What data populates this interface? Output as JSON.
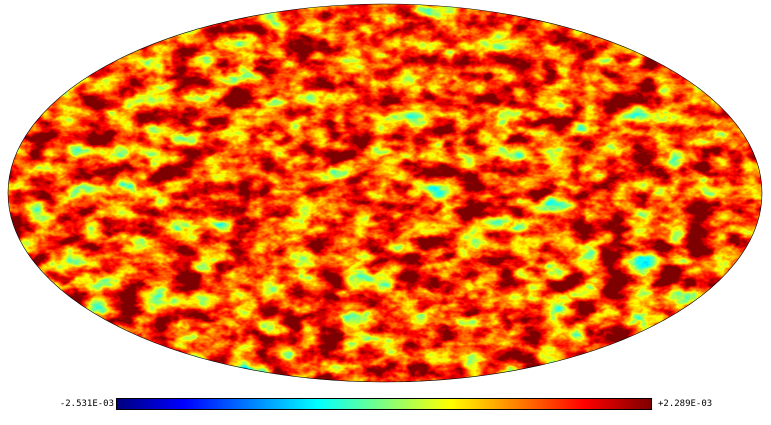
{
  "map": {
    "projection": "mollweide",
    "colormap": "jet",
    "colors": [
      "#00007f",
      "#0000ff",
      "#007fff",
      "#00ffff",
      "#7fff7f",
      "#ffff00",
      "#ff7f00",
      "#ff0000",
      "#7f0000"
    ]
  },
  "colorbar": {
    "min_label": "-2.531E-03",
    "max_label": "+2.289E-03",
    "min_value": -0.002531,
    "max_value": 0.002289
  }
}
